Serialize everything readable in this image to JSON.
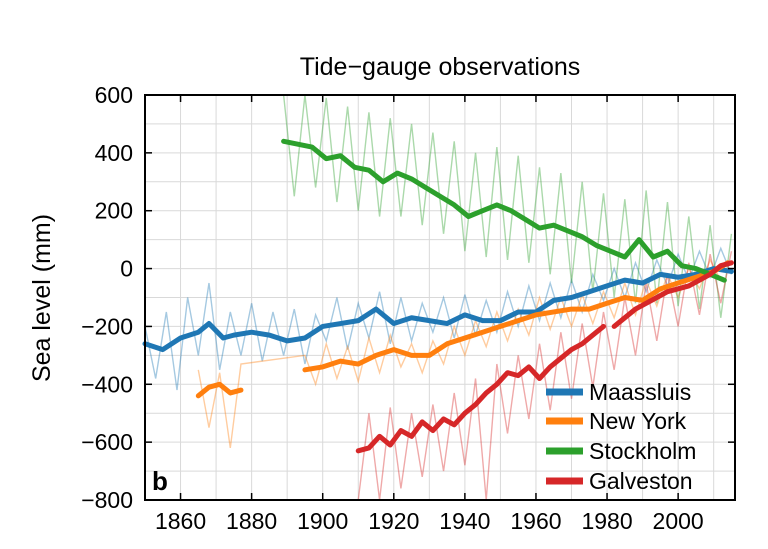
{
  "chart_data": {
    "type": "line",
    "title": "Tide−gauge observations",
    "xlabel": "",
    "ylabel": "Sea level (mm)",
    "panel_label": "b",
    "xlim": [
      1850,
      2016
    ],
    "ylim": [
      -800,
      600
    ],
    "x_ticks": [
      1860,
      1880,
      1900,
      1920,
      1940,
      1960,
      1980,
      2000
    ],
    "x_tick_labels": [
      "1860",
      "1880",
      "1900",
      "1920",
      "1940",
      "1960",
      "1980",
      "2000"
    ],
    "y_ticks": [
      600,
      400,
      200,
      0,
      -200,
      -400,
      -600,
      -800
    ],
    "y_tick_labels": [
      "600",
      "400",
      "200",
      "0",
      "−200",
      "−400",
      "−600",
      "−800"
    ],
    "grid": true,
    "legend_position": "bottom-right",
    "series": [
      {
        "name": "Maassluis",
        "color": "#1f77b4",
        "segments": [
          {
            "x": [
              1850,
              1855,
              1860,
              1865,
              1868,
              1872,
              1875,
              1880,
              1885,
              1890,
              1895,
              1900,
              1905,
              1910,
              1915,
              1920,
              1925,
              1930,
              1935,
              1940,
              1945,
              1950,
              1955,
              1960,
              1965,
              1970,
              1975,
              1980,
              1985,
              1990,
              1995,
              2000,
              2005,
              2010,
              2015
            ],
            "y": [
              -260,
              -280,
              -240,
              -220,
              -190,
              -240,
              -230,
              -220,
              -230,
              -250,
              -240,
              -200,
              -190,
              -180,
              -140,
              -190,
              -170,
              -180,
              -190,
              -160,
              -180,
              -180,
              -150,
              -150,
              -110,
              -100,
              -80,
              -60,
              -40,
              -50,
              -20,
              -30,
              -20,
              0,
              -10
            ]
          }
        ],
        "annual_x": [
          1850,
          1853,
          1856,
          1859,
          1862,
          1865,
          1868,
          1871,
          1874,
          1877,
          1880,
          1883,
          1886,
          1889,
          1892,
          1895,
          1898,
          1901,
          1904,
          1907,
          1910,
          1913,
          1916,
          1919,
          1922,
          1925,
          1928,
          1931,
          1934,
          1937,
          1940,
          1943,
          1946,
          1949,
          1952,
          1955,
          1958,
          1961,
          1964,
          1967,
          1970,
          1973,
          1976,
          1979,
          1982,
          1985,
          1988,
          1991,
          1994,
          1997,
          2000,
          2003,
          2006,
          2009,
          2012,
          2015
        ],
        "annual_y": [
          -200,
          -380,
          -150,
          -420,
          -100,
          -300,
          -50,
          -350,
          -150,
          -300,
          -120,
          -320,
          -150,
          -300,
          -140,
          -330,
          -160,
          -250,
          -100,
          -280,
          -120,
          -240,
          -80,
          -260,
          -100,
          -250,
          -120,
          -220,
          -100,
          -240,
          -90,
          -230,
          -110,
          -220,
          -80,
          -200,
          -60,
          -180,
          -50,
          -170,
          -40,
          -150,
          -20,
          -110,
          0,
          -100,
          20,
          -80,
          30,
          -60,
          50,
          -40,
          60,
          -30,
          70,
          -20
        ]
      },
      {
        "name": "New York",
        "color": "#ff7f0e",
        "segments": [
          {
            "x": [
              1865,
              1868,
              1871,
              1874,
              1877
            ],
            "y": [
              -440,
              -410,
              -400,
              -430,
              -420
            ]
          },
          {
            "x": [
              1895,
              1900,
              1905,
              1910,
              1915,
              1920,
              1925,
              1930,
              1935,
              1940,
              1945,
              1950,
              1955,
              1960,
              1965,
              1970,
              1975,
              1980,
              1985,
              1990,
              1995,
              2000,
              2005,
              2010,
              2014
            ],
            "y": [
              -350,
              -340,
              -320,
              -330,
              -300,
              -280,
              -300,
              -300,
              -260,
              -240,
              -220,
              -200,
              -180,
              -160,
              -150,
              -140,
              -140,
              -120,
              -100,
              -110,
              -70,
              -50,
              -30,
              -10,
              20
            ]
          }
        ],
        "annual_x": [
          1865,
          1868,
          1871,
          1874,
          1877,
          1895,
          1898,
          1901,
          1904,
          1907,
          1910,
          1913,
          1916,
          1919,
          1922,
          1925,
          1928,
          1931,
          1934,
          1937,
          1940,
          1943,
          1946,
          1949,
          1952,
          1955,
          1958,
          1961,
          1964,
          1967,
          1970,
          1973,
          1976,
          1979,
          1982,
          1985,
          1988,
          1991,
          1994,
          1997,
          2000,
          2003,
          2006,
          2009,
          2012
        ],
        "annual_y": [
          -350,
          -550,
          -360,
          -620,
          -330,
          -300,
          -400,
          -260,
          -380,
          -270,
          -390,
          -240,
          -360,
          -230,
          -340,
          -260,
          -360,
          -250,
          -330,
          -200,
          -300,
          -180,
          -270,
          -150,
          -250,
          -140,
          -230,
          -100,
          -210,
          -100,
          -200,
          -90,
          -190,
          -80,
          -170,
          -50,
          -160,
          -40,
          -130,
          -20,
          -100,
          0,
          -70,
          30,
          -40
        ]
      },
      {
        "name": "Stockholm",
        "color": "#2ca02c",
        "segments": [
          {
            "x": [
              1889,
              1893,
              1897,
              1901,
              1905,
              1909,
              1913,
              1917,
              1921,
              1925,
              1929,
              1933,
              1937,
              1941,
              1945,
              1949,
              1953,
              1957,
              1961,
              1965,
              1969,
              1973,
              1977,
              1981,
              1985,
              1989,
              1993,
              1997,
              2001,
              2005,
              2009,
              2013
            ],
            "y": [
              440,
              430,
              420,
              380,
              390,
              350,
              340,
              300,
              330,
              310,
              280,
              250,
              220,
              180,
              200,
              220,
              200,
              170,
              140,
              150,
              130,
              110,
              80,
              60,
              40,
              100,
              40,
              60,
              10,
              0,
              -20,
              -40
            ]
          }
        ],
        "annual_x": [
          1889,
          1892,
          1895,
          1898,
          1901,
          1904,
          1907,
          1910,
          1913,
          1916,
          1919,
          1922,
          1925,
          1928,
          1931,
          1934,
          1937,
          1940,
          1943,
          1946,
          1949,
          1952,
          1955,
          1958,
          1961,
          1964,
          1967,
          1970,
          1973,
          1976,
          1979,
          1982,
          1985,
          1988,
          1991,
          1994,
          1997,
          2000,
          2003,
          2006,
          2009,
          2012,
          2015
        ],
        "annual_y": [
          600,
          250,
          600,
          280,
          590,
          230,
          560,
          200,
          540,
          180,
          520,
          180,
          500,
          150,
          470,
          120,
          440,
          60,
          400,
          40,
          420,
          30,
          390,
          20,
          350,
          -20,
          330,
          -50,
          300,
          -80,
          260,
          -100,
          240,
          -120,
          270,
          -120,
          230,
          -130,
          180,
          -140,
          150,
          -170,
          120
        ]
      },
      {
        "name": "Galveston",
        "color": "#d62728",
        "segments": [
          {
            "x": [
              1910,
              1913,
              1916,
              1919,
              1922,
              1925,
              1928,
              1931,
              1934,
              1937,
              1940,
              1943,
              1946,
              1949,
              1952,
              1955,
              1958,
              1961,
              1964,
              1967,
              1970,
              1973,
              1976,
              1979
            ],
            "y": [
              -630,
              -620,
              -580,
              -610,
              -560,
              -580,
              -530,
              -560,
              -520,
              -540,
              -500,
              -470,
              -430,
              -400,
              -360,
              -370,
              -340,
              -380,
              -340,
              -310,
              -280,
              -260,
              -230,
              -200
            ]
          },
          {
            "x": [
              1982,
              1985,
              1988,
              1991,
              1994,
              1997,
              2000,
              2003,
              2006,
              2009,
              2012,
              2015
            ],
            "y": [
              -200,
              -170,
              -140,
              -120,
              -100,
              -80,
              -70,
              -60,
              -40,
              -20,
              10,
              20
            ]
          }
        ],
        "annual_x": [
          1910,
          1913,
          1916,
          1919,
          1922,
          1925,
          1928,
          1931,
          1934,
          1937,
          1940,
          1943,
          1946,
          1949,
          1952,
          1955,
          1958,
          1961,
          1964,
          1967,
          1970,
          1973,
          1976,
          1979,
          1982,
          1985,
          1988,
          1991,
          1994,
          1997,
          2000,
          2003,
          2006,
          2009,
          2012,
          2015
        ],
        "annual_y": [
          -800,
          -500,
          -800,
          -480,
          -760,
          -500,
          -720,
          -470,
          -700,
          -430,
          -680,
          -380,
          -800,
          -330,
          -570,
          -300,
          -520,
          -260,
          -490,
          -220,
          -450,
          -190,
          -410,
          -150,
          -350,
          -100,
          -300,
          -50,
          -250,
          -20,
          -200,
          20,
          -160,
          50,
          -120,
          60
        ]
      }
    ]
  }
}
